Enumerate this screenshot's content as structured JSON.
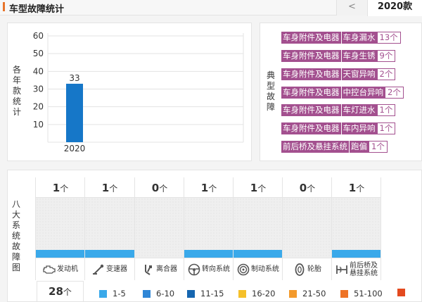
{
  "header": {
    "title": "车型故障统计",
    "prev_label": "<",
    "active_year": "2020款"
  },
  "chart_panel": {
    "side_label": "各年款统计"
  },
  "chart_data": {
    "type": "bar",
    "categories": [
      "2020"
    ],
    "values": [
      33
    ],
    "ylim": [
      0,
      60
    ],
    "yticks": [
      10,
      20,
      30,
      40,
      50,
      60
    ],
    "bar_color": "#1677c8",
    "grid": true
  },
  "typical_panel": {
    "side_label": "典型故障",
    "items": [
      {
        "category": "车身附件及电器",
        "name": "车身漏水",
        "count": "13个"
      },
      {
        "category": "车身附件及电器",
        "name": "车身生锈",
        "count": "9个"
      },
      {
        "category": "车身附件及电器",
        "name": "天窗异响",
        "count": "2个"
      },
      {
        "category": "车身附件及电器",
        "name": "中控台异响",
        "count": "2个"
      },
      {
        "category": "车身附件及电器",
        "name": "车灯进水",
        "count": "1个"
      },
      {
        "category": "车身附件及电器",
        "name": "车内异响",
        "count": "1个"
      },
      {
        "category": "前后桥及悬挂系统",
        "name": "跑偏",
        "count": "1个"
      }
    ],
    "tag_color": "#a3508f"
  },
  "systems_panel": {
    "side_label": "八大系统故障图",
    "unit": "个",
    "systems": [
      {
        "count": "1",
        "label": "发动机",
        "icon": "engine-icon",
        "level": 1
      },
      {
        "count": "1",
        "label": "变速器",
        "icon": "gear-shift-icon",
        "level": 1
      },
      {
        "count": "0",
        "label": "离合器",
        "icon": "clutch-pedal-icon",
        "level": 0
      },
      {
        "count": "1",
        "label": "转向系统",
        "icon": "steering-wheel-icon",
        "level": 1
      },
      {
        "count": "1",
        "label": "制动系统",
        "icon": "brake-disc-icon",
        "level": 1
      },
      {
        "count": "0",
        "label": "轮胎",
        "icon": "tire-icon",
        "level": 0
      },
      {
        "count": "1",
        "label": "前后桥及悬挂系统",
        "label_line1": "前后桥及",
        "label_line2": "悬挂系统",
        "icon": "suspension-icon",
        "level": 1
      }
    ],
    "total": "28",
    "total_unit": "个"
  },
  "legend": [
    {
      "range": "1-5",
      "color": "#3aa9ea"
    },
    {
      "range": "6-10",
      "color": "#2f86d6"
    },
    {
      "range": "11-15",
      "color": "#1666b0"
    },
    {
      "range": "16-20",
      "color": "#f5c02a"
    },
    {
      "range": "21-50",
      "color": "#f39a2c"
    },
    {
      "range": "51-100",
      "color": "#ee7326"
    },
    {
      "range": "",
      "color": "#e34a1f"
    }
  ]
}
